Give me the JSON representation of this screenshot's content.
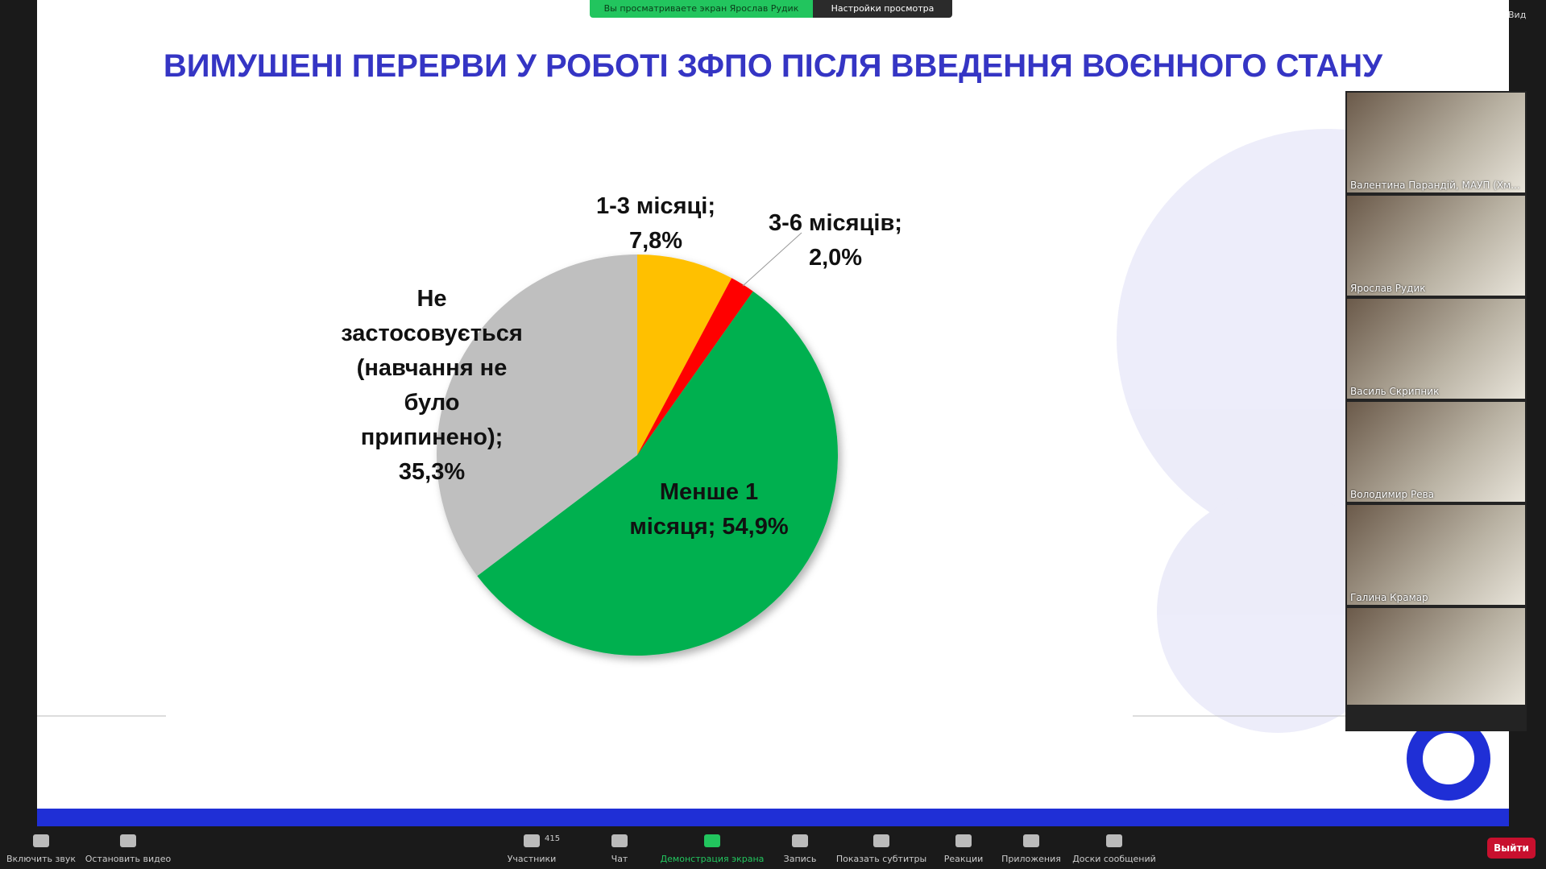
{
  "chart_data": {
    "type": "pie",
    "title": "ВИМУШЕНІ ПЕРЕРВИ У РОБОТІ ЗФПО ПІСЛЯ ВВЕДЕННЯ ВОЄННОГО СТАНУ",
    "categories": [
      "1-3 місяці;",
      "3-6 місяців;",
      "Менше 1 місяця;",
      "Не застосовується (навчання не було припинено);"
    ],
    "values": [
      7.8,
      2.0,
      54.9,
      35.3
    ],
    "value_labels": [
      "7,8%",
      "2,0%",
      "54,9%",
      "35,3%"
    ],
    "colors": [
      "#ffc000",
      "#ff0000",
      "#00b050",
      "#bfbfbf"
    ]
  },
  "ui": {
    "banner": "Вы просматриваете экран Ярослав Рудик",
    "view_settings": "Настройки просмотра",
    "view": "Вид",
    "participants": [
      "Валентина Парандій, МАУП (Хм...",
      "Ярослав Рудик",
      "Василь Скрипник",
      "Володимир Рева",
      "Галина Крамар"
    ],
    "participants_count": 415,
    "toolbar": [
      "Включить звук",
      "Остановить видео",
      "Участники",
      "Чат",
      "Демонстрация экрана",
      "Запись",
      "Показать субтитры",
      "Реакции",
      "Приложения",
      "Доски сообщений"
    ],
    "leave": "Выйти"
  }
}
